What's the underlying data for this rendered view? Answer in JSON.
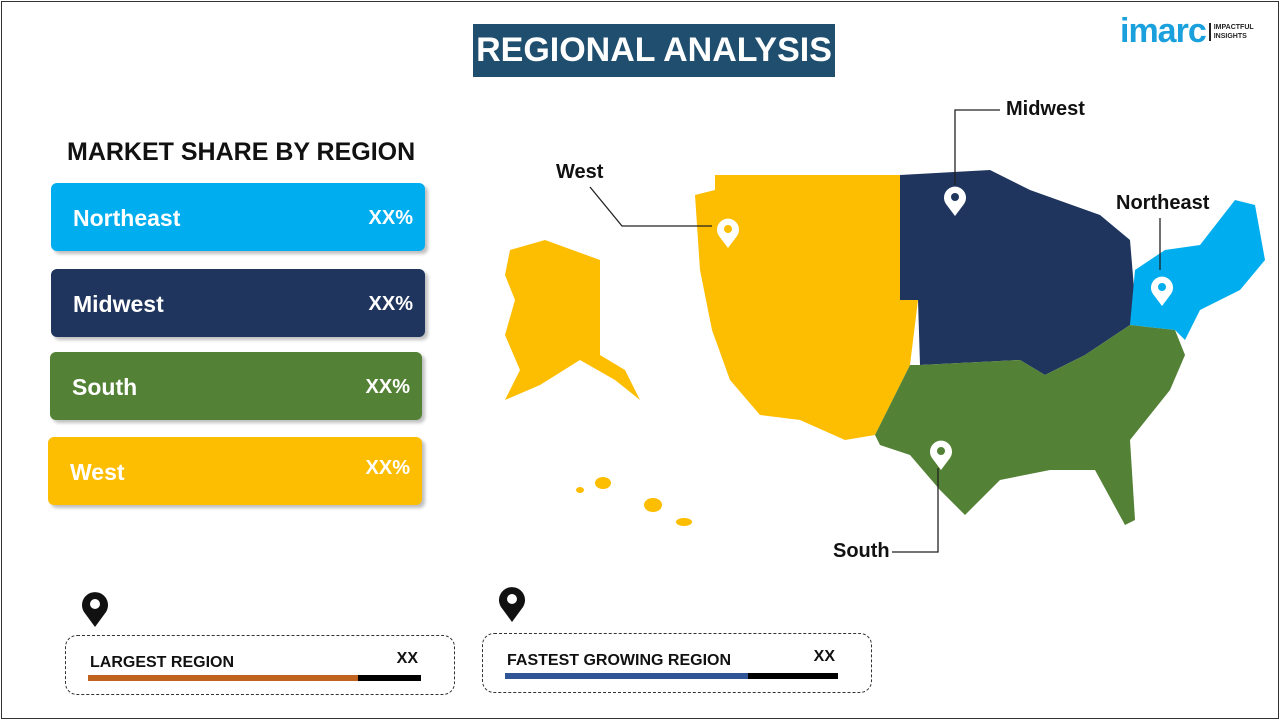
{
  "title": "REGIONAL ANALYSIS",
  "logo": {
    "word": "imarc",
    "tagline": "IMPACTFUL INSIGHTS"
  },
  "market_share": {
    "heading": "MARKET SHARE BY REGION",
    "items": [
      {
        "name": "Northeast",
        "value": "XX%",
        "color": "#00aeef"
      },
      {
        "name": "Midwest",
        "value": "XX%",
        "color": "#1f355e"
      },
      {
        "name": "South",
        "value": "XX%",
        "color": "#538135"
      },
      {
        "name": "West",
        "value": "XX%",
        "color": "#fdbd00"
      }
    ]
  },
  "map_labels": {
    "west": "West",
    "midwest": "Midwest",
    "northeast": "Northeast",
    "south": "South"
  },
  "largest": {
    "label": "LARGEST REGION",
    "value": "XX",
    "color": "#c0631f",
    "fill_fraction": 0.81
  },
  "fastest": {
    "label": "FASTEST GROWING REGION",
    "value": "XX",
    "color": "#2f5597",
    "fill_fraction": 0.73
  }
}
